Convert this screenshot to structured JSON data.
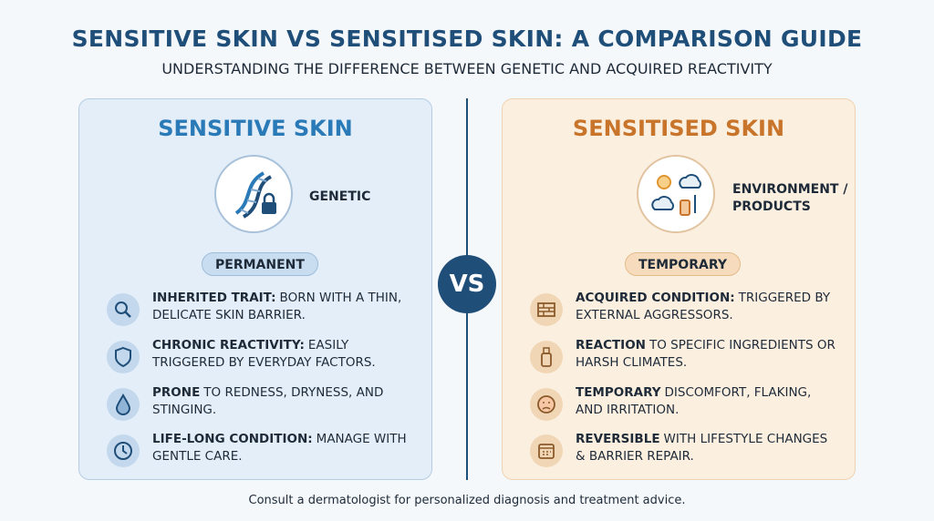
{
  "header": {
    "title": "SENSITIVE SKIN VS SENSITISED SKIN: A COMPARISON GUIDE",
    "subtitle": "UNDERSTANDING THE DIFFERENCE BETWEEN GENETIC AND ACQUIRED REACTIVITY"
  },
  "left": {
    "title": "SENSITIVE SKIN",
    "icon_label": "GENETIC",
    "badge": "PERMANENT",
    "items": [
      {
        "bold": "INHERITED TRAIT:",
        "text": "BORN WITH A THIN, DELICATE SKIN BARRIER."
      },
      {
        "bold": "CHRONIC REACTIVITY:",
        "text": "EASILY TRIGGERED BY EVERYDAY FACTORS."
      },
      {
        "bold": "PRONE",
        "text": "TO REDNESS, DRYNESS, AND STINGING."
      },
      {
        "bold": "LIFE-LONG CONDITION:",
        "text": "MANAGE WITH GENTLE CARE."
      }
    ]
  },
  "vs": "VS",
  "right": {
    "title": "SENSITISED SKIN",
    "icon_label": "ENVIRONMENT / PRODUCTS",
    "badge": "TEMPORARY",
    "items": [
      {
        "bold": "ACQUIRED CONDITION:",
        "text": "TRIGGERED BY EXTERNAL AGGRESSORS."
      },
      {
        "bold": "REACTION",
        "text": "TO SPECIFIC INGREDIENTS OR HARSH CLIMATES."
      },
      {
        "bold": "TEMPORARY",
        "text": "DISCOMFORT, FLAKING, AND IRRITATION."
      },
      {
        "bold": "REVERSIBLE",
        "text": "WITH LIFESTYLE CHANGES & BARRIER REPAIR."
      }
    ]
  },
  "footer": "Consult a dermatologist for personalized diagnosis and treatment advice."
}
